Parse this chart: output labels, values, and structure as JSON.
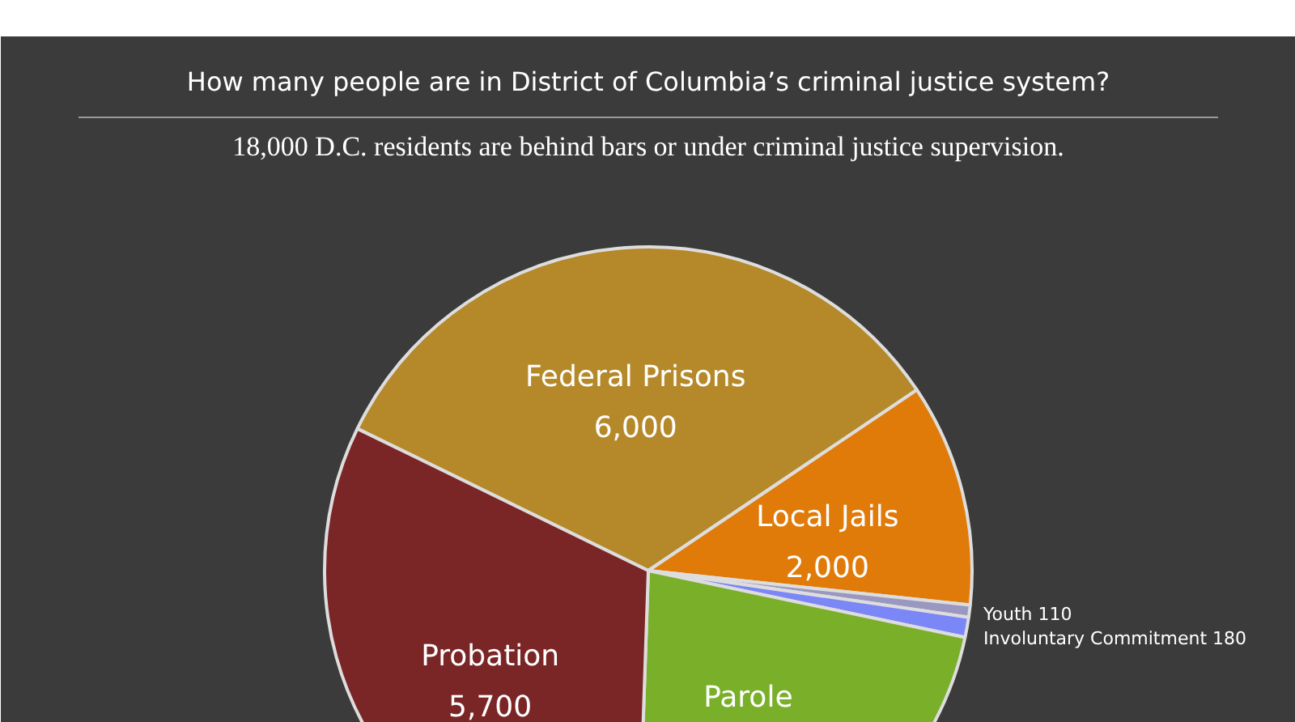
{
  "chart_data": {
    "type": "pie",
    "title": "How many people are in District of Columbia’s criminal justice system?",
    "subtitle": "18,000 D.C. residents are behind bars or under criminal justice supervision.",
    "categories": [
      "Federal Prisons",
      "Local Jails",
      "Youth",
      "Involuntary Commitment",
      "Parole",
      "Probation"
    ],
    "values": [
      6000,
      2000,
      110,
      180,
      4000,
      5700
    ],
    "value_labels": [
      "6,000",
      "2,000",
      "110",
      "180",
      null,
      "5,700"
    ],
    "colors": [
      "#b5892a",
      "#e07b0a",
      "#9a98c0",
      "#7b86f7",
      "#7aaf2a",
      "#7b2626"
    ]
  }
}
